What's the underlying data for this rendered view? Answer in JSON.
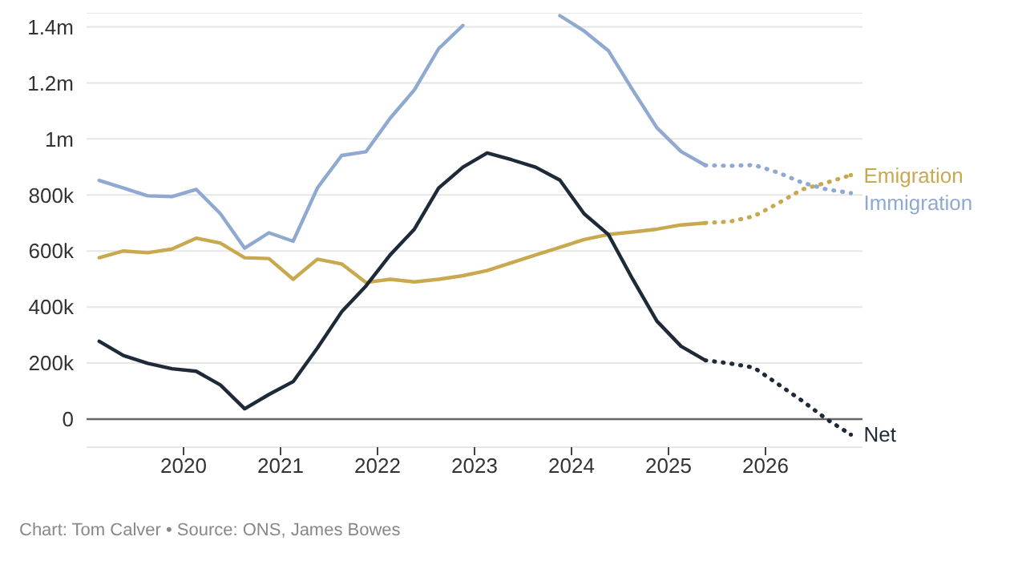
{
  "chart_data": {
    "type": "line",
    "x": [
      2019.13,
      2019.38,
      2019.63,
      2019.88,
      2020.13,
      2020.38,
      2020.63,
      2020.88,
      2021.13,
      2021.38,
      2021.63,
      2021.88,
      2022.13,
      2022.38,
      2022.63,
      2022.88,
      2023.13,
      2023.38,
      2023.63,
      2023.88,
      2024.13,
      2024.38,
      2024.63,
      2024.88,
      2025.13,
      2025.38
    ],
    "series": [
      {
        "color": "#8fa9d0",
        "values": [
          852000,
          825000,
          797000,
          794000,
          820000,
          733000,
          610000,
          665000,
          635000,
          825000,
          941000,
          954000,
          1074000,
          1175000,
          1322000,
          1405000,
          null,
          null,
          null,
          1440000,
          1385000,
          1315000,
          1175000,
          1040000,
          955000,
          906000
        ]
      },
      {
        "color": "#c9a94f",
        "values": [
          576000,
          600000,
          594000,
          607000,
          646000,
          628000,
          576000,
          573000,
          499000,
          571000,
          554000,
          488000,
          499000,
          490000,
          499000,
          512000,
          530000,
          558000,
          586000,
          613000,
          641000,
          659000,
          668000,
          678000,
          693000,
          700000
        ]
      },
      {
        "color": "#1e2a38",
        "values": [
          278000,
          227000,
          199000,
          180000,
          171000,
          122000,
          37000,
          88000,
          134000,
          254000,
          383000,
          475000,
          586000,
          678000,
          825000,
          899000,
          950000,
          926000,
          899000,
          853000,
          733000,
          659000,
          500000,
          350000,
          260000,
          210000
        ]
      },
      {
        "name": "Emigration",
        "color": "#c9a94f",
        "line_style": "dotted",
        "x": [
          2025.38,
          2025.63,
          2025.88,
          2026.13,
          2026.38,
          2026.63,
          2026.88
        ],
        "values": [
          700000,
          705000,
          724000,
          770000,
          820000,
          844000,
          871000
        ]
      },
      {
        "name": "Immigration",
        "color": "#8fa9d0",
        "line_style": "dotted",
        "x": [
          2025.38,
          2025.63,
          2025.88,
          2026.13,
          2026.38,
          2026.63,
          2026.88
        ],
        "values": [
          906000,
          904000,
          907000,
          880000,
          844000,
          820000,
          807000
        ]
      },
      {
        "name": "Net",
        "color": "#1e2a38",
        "line_style": "dotted",
        "x": [
          2025.38,
          2025.63,
          2025.88,
          2026.13,
          2026.38,
          2026.63,
          2026.88
        ],
        "values": [
          210000,
          199000,
          184000,
          125000,
          65000,
          0,
          -55000
        ]
      }
    ],
    "xlim": [
      2019,
      2027
    ],
    "xticks": [
      2020,
      2021,
      2022,
      2023,
      2024,
      2025,
      2026
    ],
    "ylim": [
      -100000,
      1450000
    ],
    "yticks": [
      {
        "value": 0,
        "label": "0"
      },
      {
        "value": 200000,
        "label": "200k"
      },
      {
        "value": 400000,
        "label": "400k"
      },
      {
        "value": 600000,
        "label": "600k"
      },
      {
        "value": 800000,
        "label": "800k"
      },
      {
        "value": 1000000,
        "label": "1m"
      },
      {
        "value": 1200000,
        "label": "1.2m"
      },
      {
        "value": 1400000,
        "label": "1.4m"
      }
    ],
    "grid": "y",
    "marker": "none",
    "line_style": "solid",
    "ref_lines": [
      {
        "axis": "y",
        "value": 0,
        "color": "#666666"
      }
    ],
    "annotations": [
      "Chart: Tom Calver • Source: ONS, James Bowes"
    ]
  }
}
